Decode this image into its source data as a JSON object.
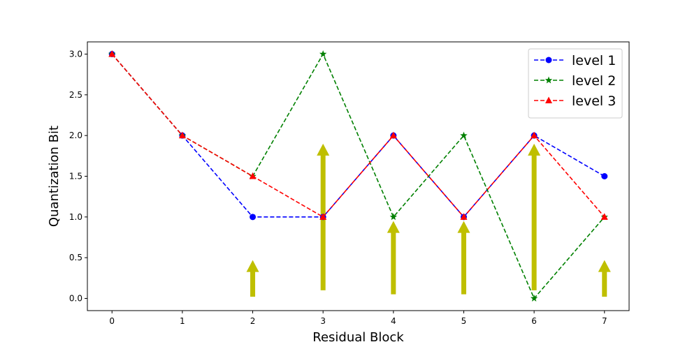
{
  "chart_data": {
    "type": "line",
    "xlabel": "Residual Block",
    "ylabel": "Quantization Bit",
    "x": [
      0,
      1,
      2,
      3,
      4,
      5,
      6,
      7
    ],
    "xlim": [
      -0.35,
      7.35
    ],
    "ylim": [
      -0.15,
      3.15
    ],
    "xticks": [
      0,
      1,
      2,
      3,
      4,
      5,
      6,
      7
    ],
    "yticks": [
      0.0,
      0.5,
      1.0,
      1.5,
      2.0,
      2.5,
      3.0
    ],
    "ytick_labels": [
      "0.0",
      "0.5",
      "1.0",
      "1.5",
      "2.0",
      "2.5",
      "3.0"
    ],
    "grid": false,
    "legend_position": "top-right",
    "series": [
      {
        "name": "level 1",
        "color": "#0000ff",
        "marker": "circle",
        "linestyle": "dashed",
        "values": [
          3.0,
          2.0,
          1.0,
          1.0,
          2.0,
          1.0,
          2.0,
          1.5
        ]
      },
      {
        "name": "level 2",
        "color": "#008000",
        "marker": "star",
        "linestyle": "dashed",
        "values": [
          3.0,
          2.0,
          1.5,
          3.0,
          1.0,
          2.0,
          0.0,
          1.0
        ]
      },
      {
        "name": "level 3",
        "color": "#ff0000",
        "marker": "triangle",
        "linestyle": "dashed",
        "values": [
          3.0,
          2.0,
          1.5,
          1.0,
          2.0,
          1.0,
          2.0,
          1.0
        ]
      }
    ],
    "annotations": {
      "type": "up-arrows",
      "color": "#bfbf00",
      "arrows": [
        {
          "x": 2,
          "y_start": 0.02,
          "y_end": 0.47
        },
        {
          "x": 3,
          "y_start": 0.1,
          "y_end": 1.9
        },
        {
          "x": 4,
          "y_start": 0.05,
          "y_end": 0.95
        },
        {
          "x": 5,
          "y_start": 0.05,
          "y_end": 0.95
        },
        {
          "x": 6,
          "y_start": 0.1,
          "y_end": 1.9
        },
        {
          "x": 7,
          "y_start": 0.02,
          "y_end": 0.47
        }
      ]
    }
  }
}
